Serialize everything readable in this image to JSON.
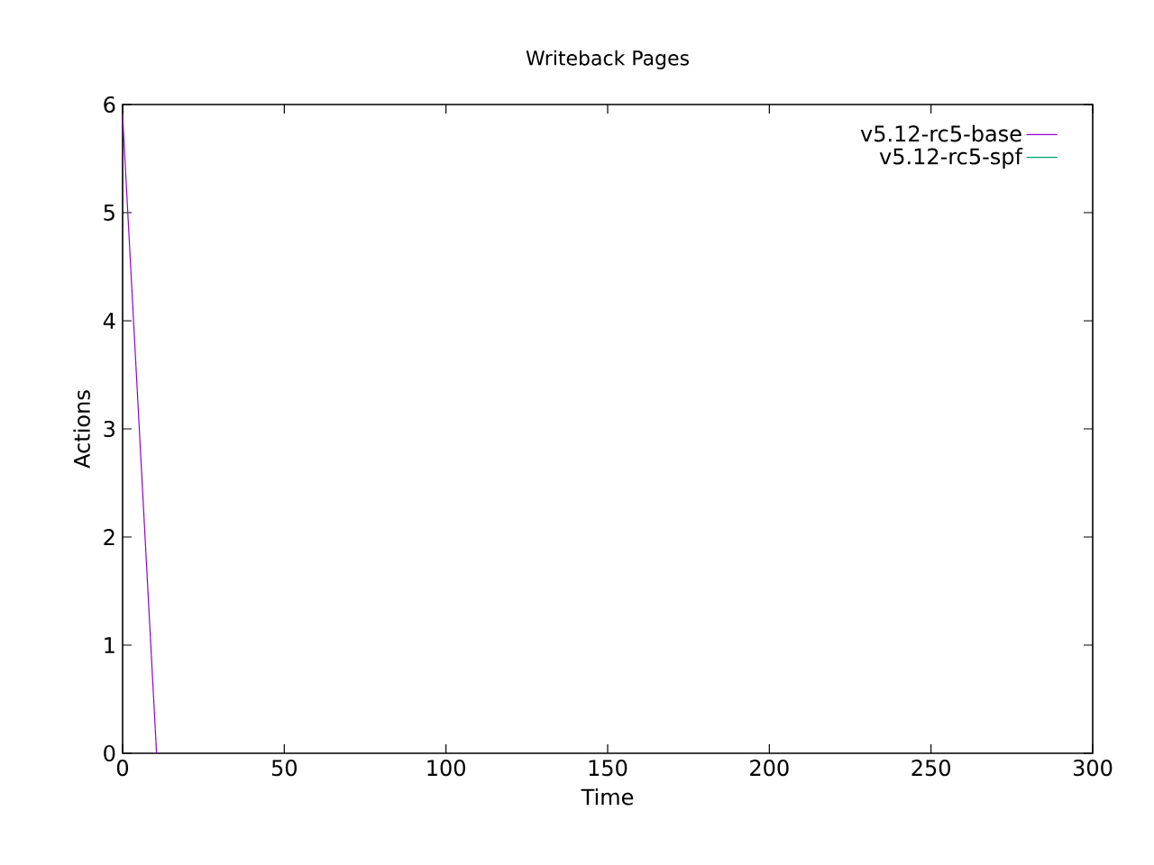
{
  "chart_data": {
    "type": "line",
    "title": "Writeback Pages",
    "xlabel": "Time",
    "ylabel": "Actions",
    "x": [
      0,
      10.5
    ],
    "series": [
      {
        "name": "v5.12-rc5-base",
        "color": "#9400d3",
        "values": [
          5.9,
          0
        ]
      },
      {
        "name": "v5.12-rc5-spf",
        "color": "#009e73",
        "values": [
          null,
          null
        ]
      }
    ],
    "xlim": [
      0,
      300
    ],
    "ylim": [
      0,
      6
    ],
    "xticks": [
      0,
      50,
      100,
      150,
      200,
      250,
      300
    ],
    "yticks": [
      0,
      1,
      2,
      3,
      4,
      5,
      6
    ],
    "legend": "top right"
  }
}
